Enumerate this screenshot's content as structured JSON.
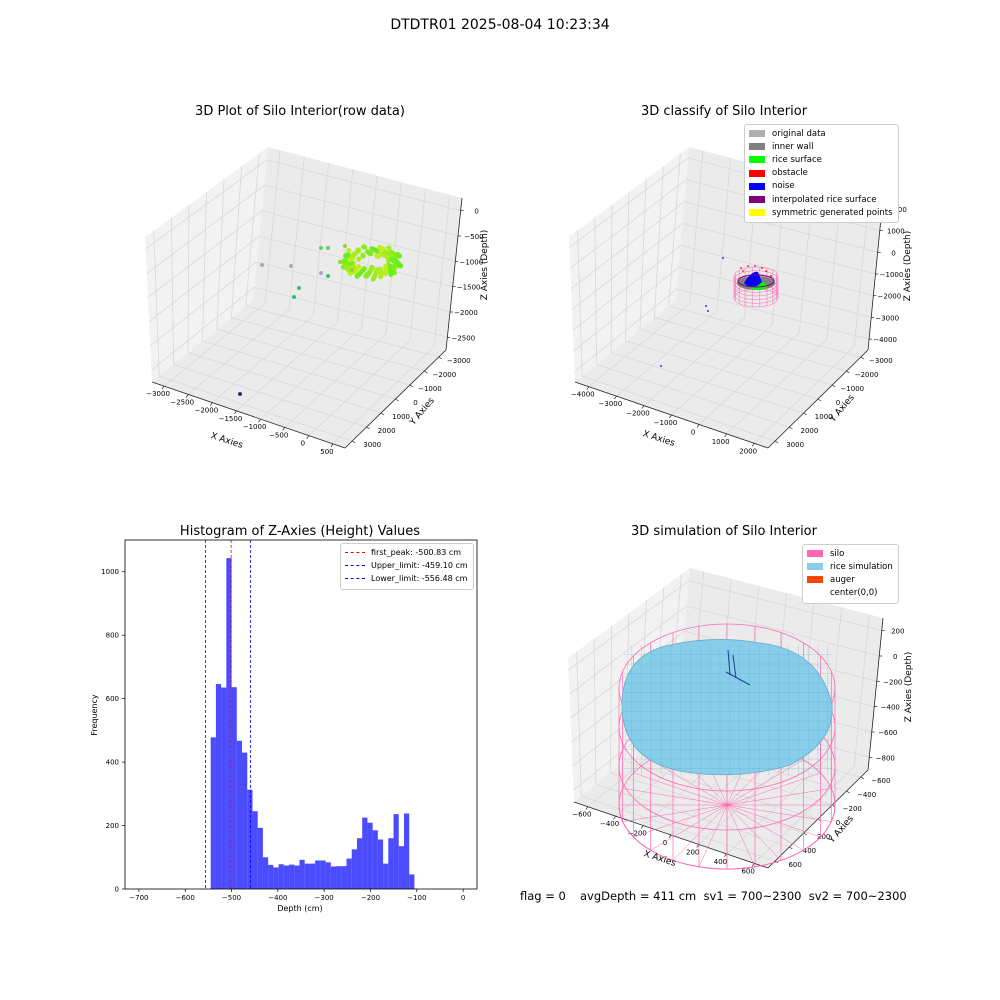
{
  "figure": {
    "suptitle": "DTDTR01 2025-08-04 10:23:34"
  },
  "panels": {
    "raw": {
      "title": "3D Plot of Silo Interior(row data)",
      "xlabel": "X Axies",
      "ylabel": "Y Axies",
      "zlabel": "Z Axies (Depth)",
      "xticks": [
        "−3000",
        "−2500",
        "−2000",
        "−1500",
        "−1000",
        "−500",
        "0",
        "500"
      ],
      "yticks": [
        "−3000",
        "−2000",
        "−1000",
        "0",
        "1000",
        "2000",
        "3000"
      ],
      "zticks": [
        "0",
        "−500",
        "−1000",
        "−1500",
        "−2000",
        "−2500"
      ]
    },
    "classify": {
      "title": "3D classify of Silo Interior",
      "xlabel": "X Axies",
      "ylabel": "Y Axies",
      "zlabel": "Z Axies (Depth)",
      "xticks": [
        "−4000",
        "−3000",
        "−2000",
        "−1000",
        "0",
        "1000",
        "2000"
      ],
      "yticks": [
        "−3000",
        "−2000",
        "−1000",
        "0",
        "1000",
        "2000",
        "3000"
      ],
      "zticks": [
        "2000",
        "1000",
        "0",
        "−1000",
        "−2000",
        "−3000",
        "−4000"
      ],
      "legend": [
        {
          "label": "original data",
          "color": "#b0b0b0"
        },
        {
          "label": "inner wall",
          "color": "#808080"
        },
        {
          "label": "rice surface",
          "color": "#00ff00"
        },
        {
          "label": "obstacle",
          "color": "#ff0000"
        },
        {
          "label": "noise",
          "color": "#0000ff"
        },
        {
          "label": "interpolated rice surface",
          "color": "#800080"
        },
        {
          "label": "symmetric generated points",
          "color": "#ffff00"
        }
      ]
    },
    "simulation": {
      "title": "3D simulation of Silo Interior",
      "xlabel": "X Axies",
      "ylabel": "Y Axies",
      "zlabel": "Z Axies (Depth)",
      "xticks": [
        "−600",
        "−400",
        "−200",
        "0",
        "200",
        "400",
        "600"
      ],
      "yticks": [
        "−600",
        "−400",
        "−200",
        "0",
        "200",
        "400",
        "600"
      ],
      "zticks": [
        "200",
        "0",
        "−200",
        "−400",
        "−600",
        "−800"
      ],
      "legend": [
        {
          "label": "silo",
          "color": "#ff69b4"
        },
        {
          "label": "rice simulation",
          "color": "#87ceeb"
        },
        {
          "label": "auger",
          "color": "#ff4500"
        },
        {
          "label": "center(0,0)",
          "color": "#ffffff"
        }
      ]
    }
  },
  "chart_data": {
    "type": "bar",
    "title": "Histogram of Z-Axies (Height) Values",
    "xlabel": "Depth (cm)",
    "ylabel": "Frequency",
    "xlim": [
      -730,
      30
    ],
    "ylim": [
      0,
      1100
    ],
    "xticks": [
      -700,
      -600,
      -500,
      -400,
      -300,
      -200,
      -100,
      0
    ],
    "yticks": [
      0,
      200,
      400,
      600,
      800,
      1000
    ],
    "bar_color": "#0000ff",
    "bin_width": 11.28,
    "bin_start": -545.0,
    "values": [
      478,
      646,
      635,
      1043,
      636,
      467,
      430,
      313,
      245,
      193,
      100,
      76,
      68,
      78,
      74,
      77,
      74,
      92,
      80,
      80,
      90,
      90,
      84,
      71,
      72,
      72,
      96,
      125,
      160,
      225,
      209,
      185,
      156,
      80,
      160,
      236,
      135,
      238,
      46
    ],
    "vlines": [
      {
        "label": "first_peak: -500.83 cm",
        "x": -500.83,
        "color": "#ff0000"
      },
      {
        "label": "Upper_limit: -459.10 cm",
        "x": -459.1,
        "color": "#0000ff"
      },
      {
        "label": "Lower_limit: -556.48 cm",
        "x": -556.48,
        "color": "#0000ff"
      }
    ]
  },
  "footer": {
    "flag": "flag = 0",
    "stats": "avgDepth = 411 cm  sv1 = 700~2300  sv2 = 700~2300"
  }
}
